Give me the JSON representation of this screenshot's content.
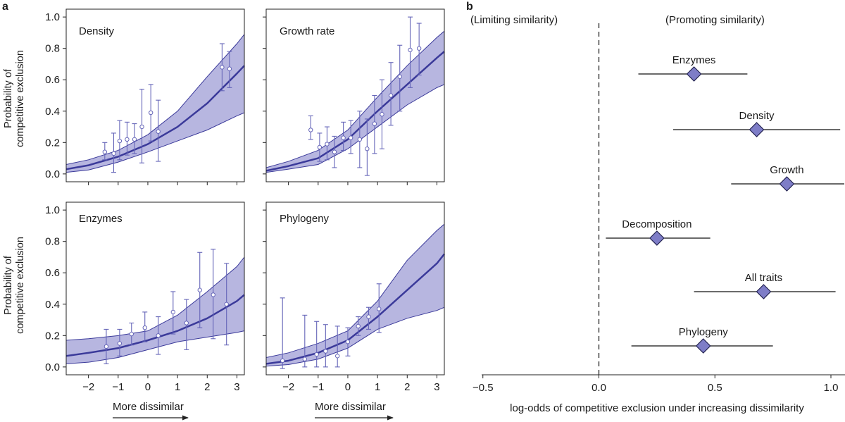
{
  "panel_labels": {
    "a": "a",
    "b": "b"
  },
  "colors": {
    "curve": "#3b3a9a",
    "band": "#b7b6e0",
    "marker": "#6565b8",
    "axis": "#222222"
  },
  "chart_data": [
    {
      "type": "line",
      "panel": "a",
      "title": "Density",
      "ylabel": "Probability of competitive exclusion",
      "xlabel": "",
      "xlim": [
        -2.75,
        3.25
      ],
      "ylim": [
        -0.05,
        1.05
      ],
      "xticks": [
        -2,
        -1,
        0,
        1,
        2,
        3
      ],
      "yticks": [
        0.0,
        0.2,
        0.4,
        0.6,
        0.8,
        1.0
      ],
      "ytick_labels": [
        "0.0",
        "0.2",
        "0.4",
        "0.6",
        "0.8",
        "1.0"
      ],
      "curve": {
        "x": [
          -2.75,
          -2,
          -1,
          0,
          1,
          2,
          3,
          3.25
        ],
        "y": [
          0.03,
          0.055,
          0.11,
          0.19,
          0.3,
          0.45,
          0.64,
          0.69
        ]
      },
      "band_upper": {
        "x": [
          -2.75,
          -2,
          -1,
          0,
          1,
          2,
          3,
          3.25
        ],
        "y": [
          0.06,
          0.09,
          0.15,
          0.25,
          0.4,
          0.62,
          0.83,
          0.89
        ]
      },
      "band_lower": {
        "x": [
          -2.75,
          -2,
          -1,
          0,
          1,
          2,
          3,
          3.25
        ],
        "y": [
          0.01,
          0.025,
          0.075,
          0.14,
          0.21,
          0.28,
          0.37,
          0.39
        ]
      },
      "points": [
        {
          "x": -1.45,
          "y": 0.14,
          "lo": 0.09,
          "hi": 0.2
        },
        {
          "x": -1.15,
          "y": 0.13,
          "lo": 0.01,
          "hi": 0.26
        },
        {
          "x": -0.95,
          "y": 0.21,
          "lo": 0.09,
          "hi": 0.34
        },
        {
          "x": -0.7,
          "y": 0.22,
          "lo": 0.12,
          "hi": 0.33
        },
        {
          "x": -0.45,
          "y": 0.22,
          "lo": 0.13,
          "hi": 0.32
        },
        {
          "x": -0.2,
          "y": 0.3,
          "lo": 0.07,
          "hi": 0.54
        },
        {
          "x": 0.1,
          "y": 0.39,
          "lo": 0.21,
          "hi": 0.57
        },
        {
          "x": 0.35,
          "y": 0.27,
          "lo": 0.08,
          "hi": 0.47
        },
        {
          "x": 2.5,
          "y": 0.68,
          "lo": 0.53,
          "hi": 0.83
        },
        {
          "x": 2.75,
          "y": 0.67,
          "lo": 0.55,
          "hi": 0.78
        }
      ]
    },
    {
      "type": "line",
      "panel": "a",
      "title": "Growth rate",
      "ylabel": "",
      "xlabel": "",
      "xlim": [
        -2.75,
        3.25
      ],
      "ylim": [
        -0.05,
        1.05
      ],
      "xticks": [
        -2,
        -1,
        0,
        1,
        2,
        3
      ],
      "yticks": [
        0.0,
        0.2,
        0.4,
        0.6,
        0.8,
        1.0
      ],
      "ytick_labels": [
        "",
        "",
        "",
        "",
        "",
        ""
      ],
      "curve": {
        "x": [
          -2.75,
          -2,
          -1,
          0,
          1,
          2,
          3,
          3.25
        ],
        "y": [
          0.02,
          0.05,
          0.1,
          0.22,
          0.4,
          0.57,
          0.74,
          0.78
        ]
      },
      "band_upper": {
        "x": [
          -2.75,
          -2,
          -1,
          0,
          1,
          2,
          3,
          3.25
        ],
        "y": [
          0.04,
          0.08,
          0.15,
          0.28,
          0.49,
          0.69,
          0.87,
          0.91
        ]
      },
      "band_lower": {
        "x": [
          -2.75,
          -2,
          -1,
          0,
          1,
          2,
          3,
          3.25
        ],
        "y": [
          0.01,
          0.03,
          0.06,
          0.16,
          0.3,
          0.44,
          0.55,
          0.57
        ]
      },
      "points": [
        {
          "x": -1.25,
          "y": 0.28,
          "lo": 0.22,
          "hi": 0.37
        },
        {
          "x": -0.95,
          "y": 0.17,
          "lo": 0.08,
          "hi": 0.26
        },
        {
          "x": -0.7,
          "y": 0.19,
          "lo": 0.09,
          "hi": 0.3
        },
        {
          "x": -0.45,
          "y": 0.14,
          "lo": 0.04,
          "hi": 0.24
        },
        {
          "x": -0.15,
          "y": 0.23,
          "lo": 0.15,
          "hi": 0.33
        },
        {
          "x": 0.1,
          "y": 0.23,
          "lo": 0.13,
          "hi": 0.34
        },
        {
          "x": 0.4,
          "y": 0.22,
          "lo": 0.04,
          "hi": 0.4
        },
        {
          "x": 0.65,
          "y": 0.16,
          "lo": -0.01,
          "hi": 0.35
        },
        {
          "x": 0.9,
          "y": 0.32,
          "lo": 0.13,
          "hi": 0.5
        },
        {
          "x": 1.15,
          "y": 0.38,
          "lo": 0.16,
          "hi": 0.6
        },
        {
          "x": 1.45,
          "y": 0.5,
          "lo": 0.31,
          "hi": 0.71
        },
        {
          "x": 1.75,
          "y": 0.62,
          "lo": 0.4,
          "hi": 0.82
        },
        {
          "x": 2.1,
          "y": 0.79,
          "lo": 0.55,
          "hi": 1.0
        },
        {
          "x": 2.4,
          "y": 0.8,
          "lo": 0.63,
          "hi": 0.96
        }
      ]
    },
    {
      "type": "line",
      "panel": "a",
      "title": "Enzymes",
      "ylabel": "Probability of competitive exclusion",
      "xlabel": "More dissimilar",
      "xlim": [
        -2.75,
        3.25
      ],
      "ylim": [
        -0.05,
        1.05
      ],
      "xticks": [
        -2,
        -1,
        0,
        1,
        2,
        3
      ],
      "xtick_labels": [
        "−2",
        "−1",
        "0",
        "1",
        "2",
        "3"
      ],
      "yticks": [
        0.0,
        0.2,
        0.4,
        0.6,
        0.8,
        1.0
      ],
      "ytick_labels": [
        "0.0",
        "0.2",
        "0.4",
        "0.6",
        "0.8",
        "1.0"
      ],
      "curve": {
        "x": [
          -2.75,
          -2,
          -1,
          0,
          1,
          2,
          3,
          3.25
        ],
        "y": [
          0.07,
          0.09,
          0.12,
          0.17,
          0.23,
          0.31,
          0.42,
          0.46
        ]
      },
      "band_upper": {
        "x": [
          -2.75,
          -2,
          -1,
          0,
          1,
          2,
          3,
          3.25
        ],
        "y": [
          0.17,
          0.18,
          0.2,
          0.23,
          0.33,
          0.48,
          0.64,
          0.7
        ]
      },
      "band_lower": {
        "x": [
          -2.75,
          -2,
          -1,
          0,
          1,
          2,
          3,
          3.25
        ],
        "y": [
          0.02,
          0.03,
          0.06,
          0.11,
          0.16,
          0.19,
          0.22,
          0.23
        ]
      },
      "points": [
        {
          "x": -1.4,
          "y": 0.13,
          "lo": 0.02,
          "hi": 0.24
        },
        {
          "x": -0.95,
          "y": 0.15,
          "lo": 0.07,
          "hi": 0.24
        },
        {
          "x": -0.55,
          "y": 0.21,
          "lo": 0.14,
          "hi": 0.28
        },
        {
          "x": -0.1,
          "y": 0.25,
          "lo": 0.16,
          "hi": 0.35
        },
        {
          "x": 0.35,
          "y": 0.2,
          "lo": 0.08,
          "hi": 0.32
        },
        {
          "x": 0.85,
          "y": 0.35,
          "lo": 0.21,
          "hi": 0.48
        },
        {
          "x": 1.3,
          "y": 0.28,
          "lo": 0.11,
          "hi": 0.43
        },
        {
          "x": 1.75,
          "y": 0.49,
          "lo": 0.25,
          "hi": 0.73
        },
        {
          "x": 2.2,
          "y": 0.46,
          "lo": 0.18,
          "hi": 0.75
        },
        {
          "x": 2.65,
          "y": 0.4,
          "lo": 0.14,
          "hi": 0.66
        }
      ]
    },
    {
      "type": "line",
      "panel": "a",
      "title": "Phylogeny",
      "ylabel": "",
      "xlabel": "More dissimilar",
      "xlim": [
        -2.75,
        3.25
      ],
      "ylim": [
        -0.05,
        1.05
      ],
      "xticks": [
        -2,
        -1,
        0,
        1,
        2,
        3
      ],
      "xtick_labels": [
        "−2",
        "−1",
        "0",
        "1",
        "2",
        "3"
      ],
      "yticks": [
        0.0,
        0.2,
        0.4,
        0.6,
        0.8,
        1.0
      ],
      "ytick_labels": [
        "",
        "",
        "",
        "",
        "",
        ""
      ],
      "curve": {
        "x": [
          -2.75,
          -2,
          -1,
          0,
          1,
          2,
          3,
          3.25
        ],
        "y": [
          0.02,
          0.04,
          0.09,
          0.17,
          0.32,
          0.49,
          0.66,
          0.72
        ]
      },
      "band_upper": {
        "x": [
          -2.75,
          -2,
          -1,
          0,
          1,
          2,
          3,
          3.25
        ],
        "y": [
          0.06,
          0.09,
          0.15,
          0.23,
          0.42,
          0.68,
          0.87,
          0.91
        ]
      },
      "band_lower": {
        "x": [
          -2.75,
          -2,
          -1,
          0,
          1,
          2,
          3,
          3.25
        ],
        "y": [
          0.005,
          0.015,
          0.05,
          0.12,
          0.24,
          0.31,
          0.36,
          0.38
        ]
      },
      "points": [
        {
          "x": -2.2,
          "y": 0.04,
          "lo": -0.01,
          "hi": 0.44
        },
        {
          "x": -1.45,
          "y": 0.05,
          "lo": 0.0,
          "hi": 0.33
        },
        {
          "x": -1.05,
          "y": 0.08,
          "lo": 0.0,
          "hi": 0.29
        },
        {
          "x": -0.75,
          "y": 0.1,
          "lo": 0.0,
          "hi": 0.27
        },
        {
          "x": -0.35,
          "y": 0.07,
          "lo": 0.0,
          "hi": 0.26
        },
        {
          "x": 0.0,
          "y": 0.16,
          "lo": 0.07,
          "hi": 0.25
        },
        {
          "x": 0.35,
          "y": 0.26,
          "lo": 0.2,
          "hi": 0.32
        },
        {
          "x": 0.7,
          "y": 0.32,
          "lo": 0.24,
          "hi": 0.38
        },
        {
          "x": 1.05,
          "y": 0.37,
          "lo": 0.22,
          "hi": 0.53
        }
      ]
    },
    {
      "type": "scatter",
      "panel": "b",
      "title": "",
      "xlabel": "log-odds of competitive exclusion under increasing dissimilarity",
      "xlim": [
        -0.52,
        1.05
      ],
      "xticks": [
        -0.5,
        0.0,
        0.5,
        1.0
      ],
      "xtick_labels": [
        "−0.5",
        "0.0",
        "0.5",
        "1.0"
      ],
      "reference_line": 0.0,
      "annotations": {
        "left": "(Limiting similarity)",
        "right": "(Promoting similarity)"
      },
      "points": [
        {
          "label": "Enzymes",
          "estimate": 0.41,
          "lo": 0.17,
          "hi": 0.64
        },
        {
          "label": "Density",
          "estimate": 0.68,
          "lo": 0.32,
          "hi": 1.04
        },
        {
          "label": "Growth",
          "estimate": 0.81,
          "lo": 0.57,
          "hi": 1.06
        },
        {
          "label": "Decomposition",
          "estimate": 0.25,
          "lo": 0.03,
          "hi": 0.48
        },
        {
          "label": "All traits",
          "estimate": 0.71,
          "lo": 0.41,
          "hi": 1.02
        },
        {
          "label": "Phylogeny",
          "estimate": 0.45,
          "lo": 0.14,
          "hi": 0.75
        }
      ]
    }
  ]
}
